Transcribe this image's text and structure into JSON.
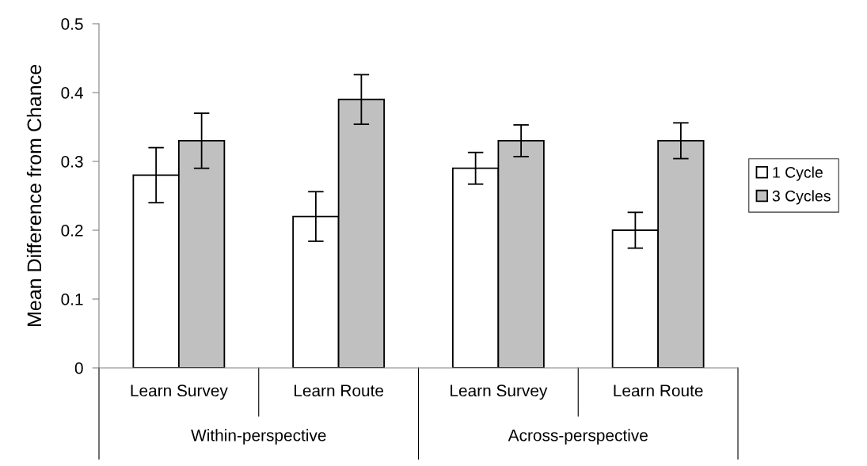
{
  "chart_data": {
    "type": "bar",
    "ylabel": "Mean Difference from Chance",
    "categories": [
      "Learn Survey",
      "Learn Route",
      "Learn Survey",
      "Learn Route"
    ],
    "series": [
      {
        "name": "1 Cycle",
        "color": "#ffffff",
        "values": [
          0.28,
          0.22,
          0.29,
          0.2
        ],
        "errors": [
          0.04,
          0.036,
          0.023,
          0.026
        ]
      },
      {
        "name": "3 Cycles",
        "color": "#c0c0c0",
        "values": [
          0.33,
          0.39,
          0.33,
          0.33
        ],
        "errors": [
          0.04,
          0.036,
          0.023,
          0.026
        ]
      }
    ],
    "annotations": [
      "Within-perspective",
      "Across-perspective"
    ],
    "ylim": [
      0,
      0.5
    ],
    "yticks": [
      {
        "value": 0,
        "label": "0"
      },
      0.1,
      0.2,
      0.3,
      0.4,
      0.5
    ],
    "grid": false,
    "legend": "right"
  }
}
